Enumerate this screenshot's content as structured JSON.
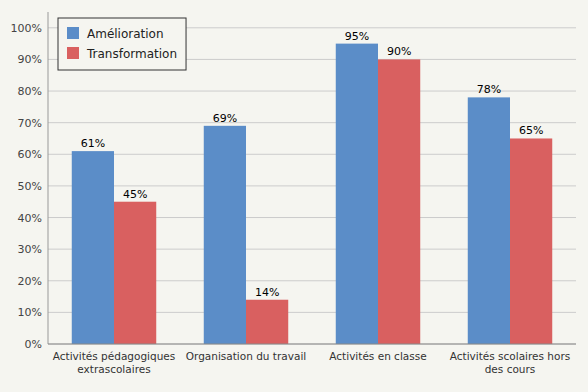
{
  "chart_data": {
    "type": "bar",
    "categories": [
      "Activités pédagogiques\nextrascolaires",
      "Organisation du travail",
      "Activités en classe",
      "Activités scolaires hors\ndes cours"
    ],
    "series": [
      {
        "name": "Amélioration",
        "color": "#5B8DC8",
        "values": [
          61,
          69,
          95,
          78
        ],
        "value_labels": [
          "61%",
          "69%",
          "95%",
          "78%"
        ]
      },
      {
        "name": "Transformation",
        "color": "#D96060",
        "values": [
          45,
          14,
          90,
          65
        ],
        "value_labels": [
          "45%",
          "14%",
          "90%",
          "65%"
        ]
      }
    ],
    "ylim": [
      0,
      105
    ],
    "yticks": [
      {
        "value": 0,
        "label": "0%"
      },
      {
        "value": 10,
        "label": "10%"
      },
      {
        "value": 20,
        "label": "20%"
      },
      {
        "value": 30,
        "label": "30%"
      },
      {
        "value": 40,
        "label": "40%"
      },
      {
        "value": 50,
        "label": "50%"
      },
      {
        "value": 60,
        "label": "60%"
      },
      {
        "value": 70,
        "label": "70%"
      },
      {
        "value": 80,
        "label": "80%"
      },
      {
        "value": 90,
        "label": "90%"
      },
      {
        "value": 100,
        "label": "100%"
      }
    ],
    "grid": true,
    "legend": "upper left",
    "data_labels": true
  }
}
